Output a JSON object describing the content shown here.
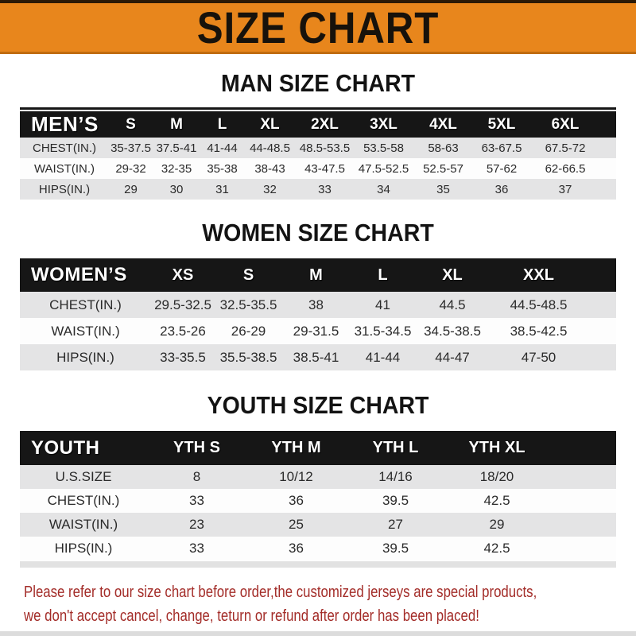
{
  "banner": {
    "title": "SIZE CHART",
    "bg_color": "#E8861C",
    "text_color": "#17120b"
  },
  "sections": [
    {
      "title": "MAN SIZE CHART",
      "header_label": "MEN’S",
      "columns": [
        "S",
        "M",
        "L",
        "XL",
        "2XL",
        "3XL",
        "4XL",
        "5XL",
        "6XL"
      ],
      "rows": [
        {
          "label": "CHEST(IN.)",
          "values": [
            "35-37.5",
            "37.5-41",
            "41-44",
            "44-48.5",
            "48.5-53.5",
            "53.5-58",
            "58-63",
            "63-67.5",
            "67.5-72"
          ]
        },
        {
          "label": "WAIST(IN.)",
          "values": [
            "29-32",
            "32-35",
            "35-38",
            "38-43",
            "43-47.5",
            "47.5-52.5",
            "52.5-57",
            "57-62",
            "62-66.5"
          ]
        },
        {
          "label": "HIPS(IN.)",
          "values": [
            "29",
            "30",
            "31",
            "32",
            "33",
            "34",
            "35",
            "36",
            "37"
          ]
        }
      ]
    },
    {
      "title": "WOMEN SIZE CHART",
      "header_label": "WOMEN’S",
      "columns": [
        "XS",
        "S",
        "M",
        "L",
        "XL",
        "XXL"
      ],
      "rows": [
        {
          "label": "CHEST(IN.)",
          "values": [
            "29.5-32.5",
            "32.5-35.5",
            "38",
            "41",
            "44.5",
            "44.5-48.5"
          ]
        },
        {
          "label": "WAIST(IN.)",
          "values": [
            "23.5-26",
            "26-29",
            "29-31.5",
            "31.5-34.5",
            "34.5-38.5",
            "38.5-42.5"
          ]
        },
        {
          "label": "HIPS(IN.)",
          "values": [
            "33-35.5",
            "35.5-38.5",
            "38.5-41",
            "41-44",
            "44-47",
            "47-50"
          ]
        }
      ]
    },
    {
      "title": "YOUTH SIZE CHART",
      "header_label": "YOUTH",
      "columns": [
        "YTH S",
        "YTH M",
        "YTH L",
        "YTH XL"
      ],
      "rows": [
        {
          "label": "U.S.SIZE",
          "values": [
            "8",
            "10/12",
            "14/16",
            "18/20"
          ]
        },
        {
          "label": "CHEST(IN.)",
          "values": [
            "33",
            "36",
            "39.5",
            "42.5"
          ]
        },
        {
          "label": "WAIST(IN.)",
          "values": [
            "23",
            "25",
            "27",
            "29"
          ]
        },
        {
          "label": "HIPS(IN.)",
          "values": [
            "33",
            "36",
            "39.5",
            "42.5"
          ]
        }
      ]
    }
  ],
  "note": {
    "line1": "Please refer to our size chart before order,the customized jerseys are special products,",
    "line2": "we don't accept cancel, change, teturn or refund after order has been placed!",
    "color": "#A32C28"
  },
  "table_colors": {
    "header_bar": "#161616",
    "row_gray": "#e4e4e5",
    "row_white": "#fdfdfd"
  }
}
